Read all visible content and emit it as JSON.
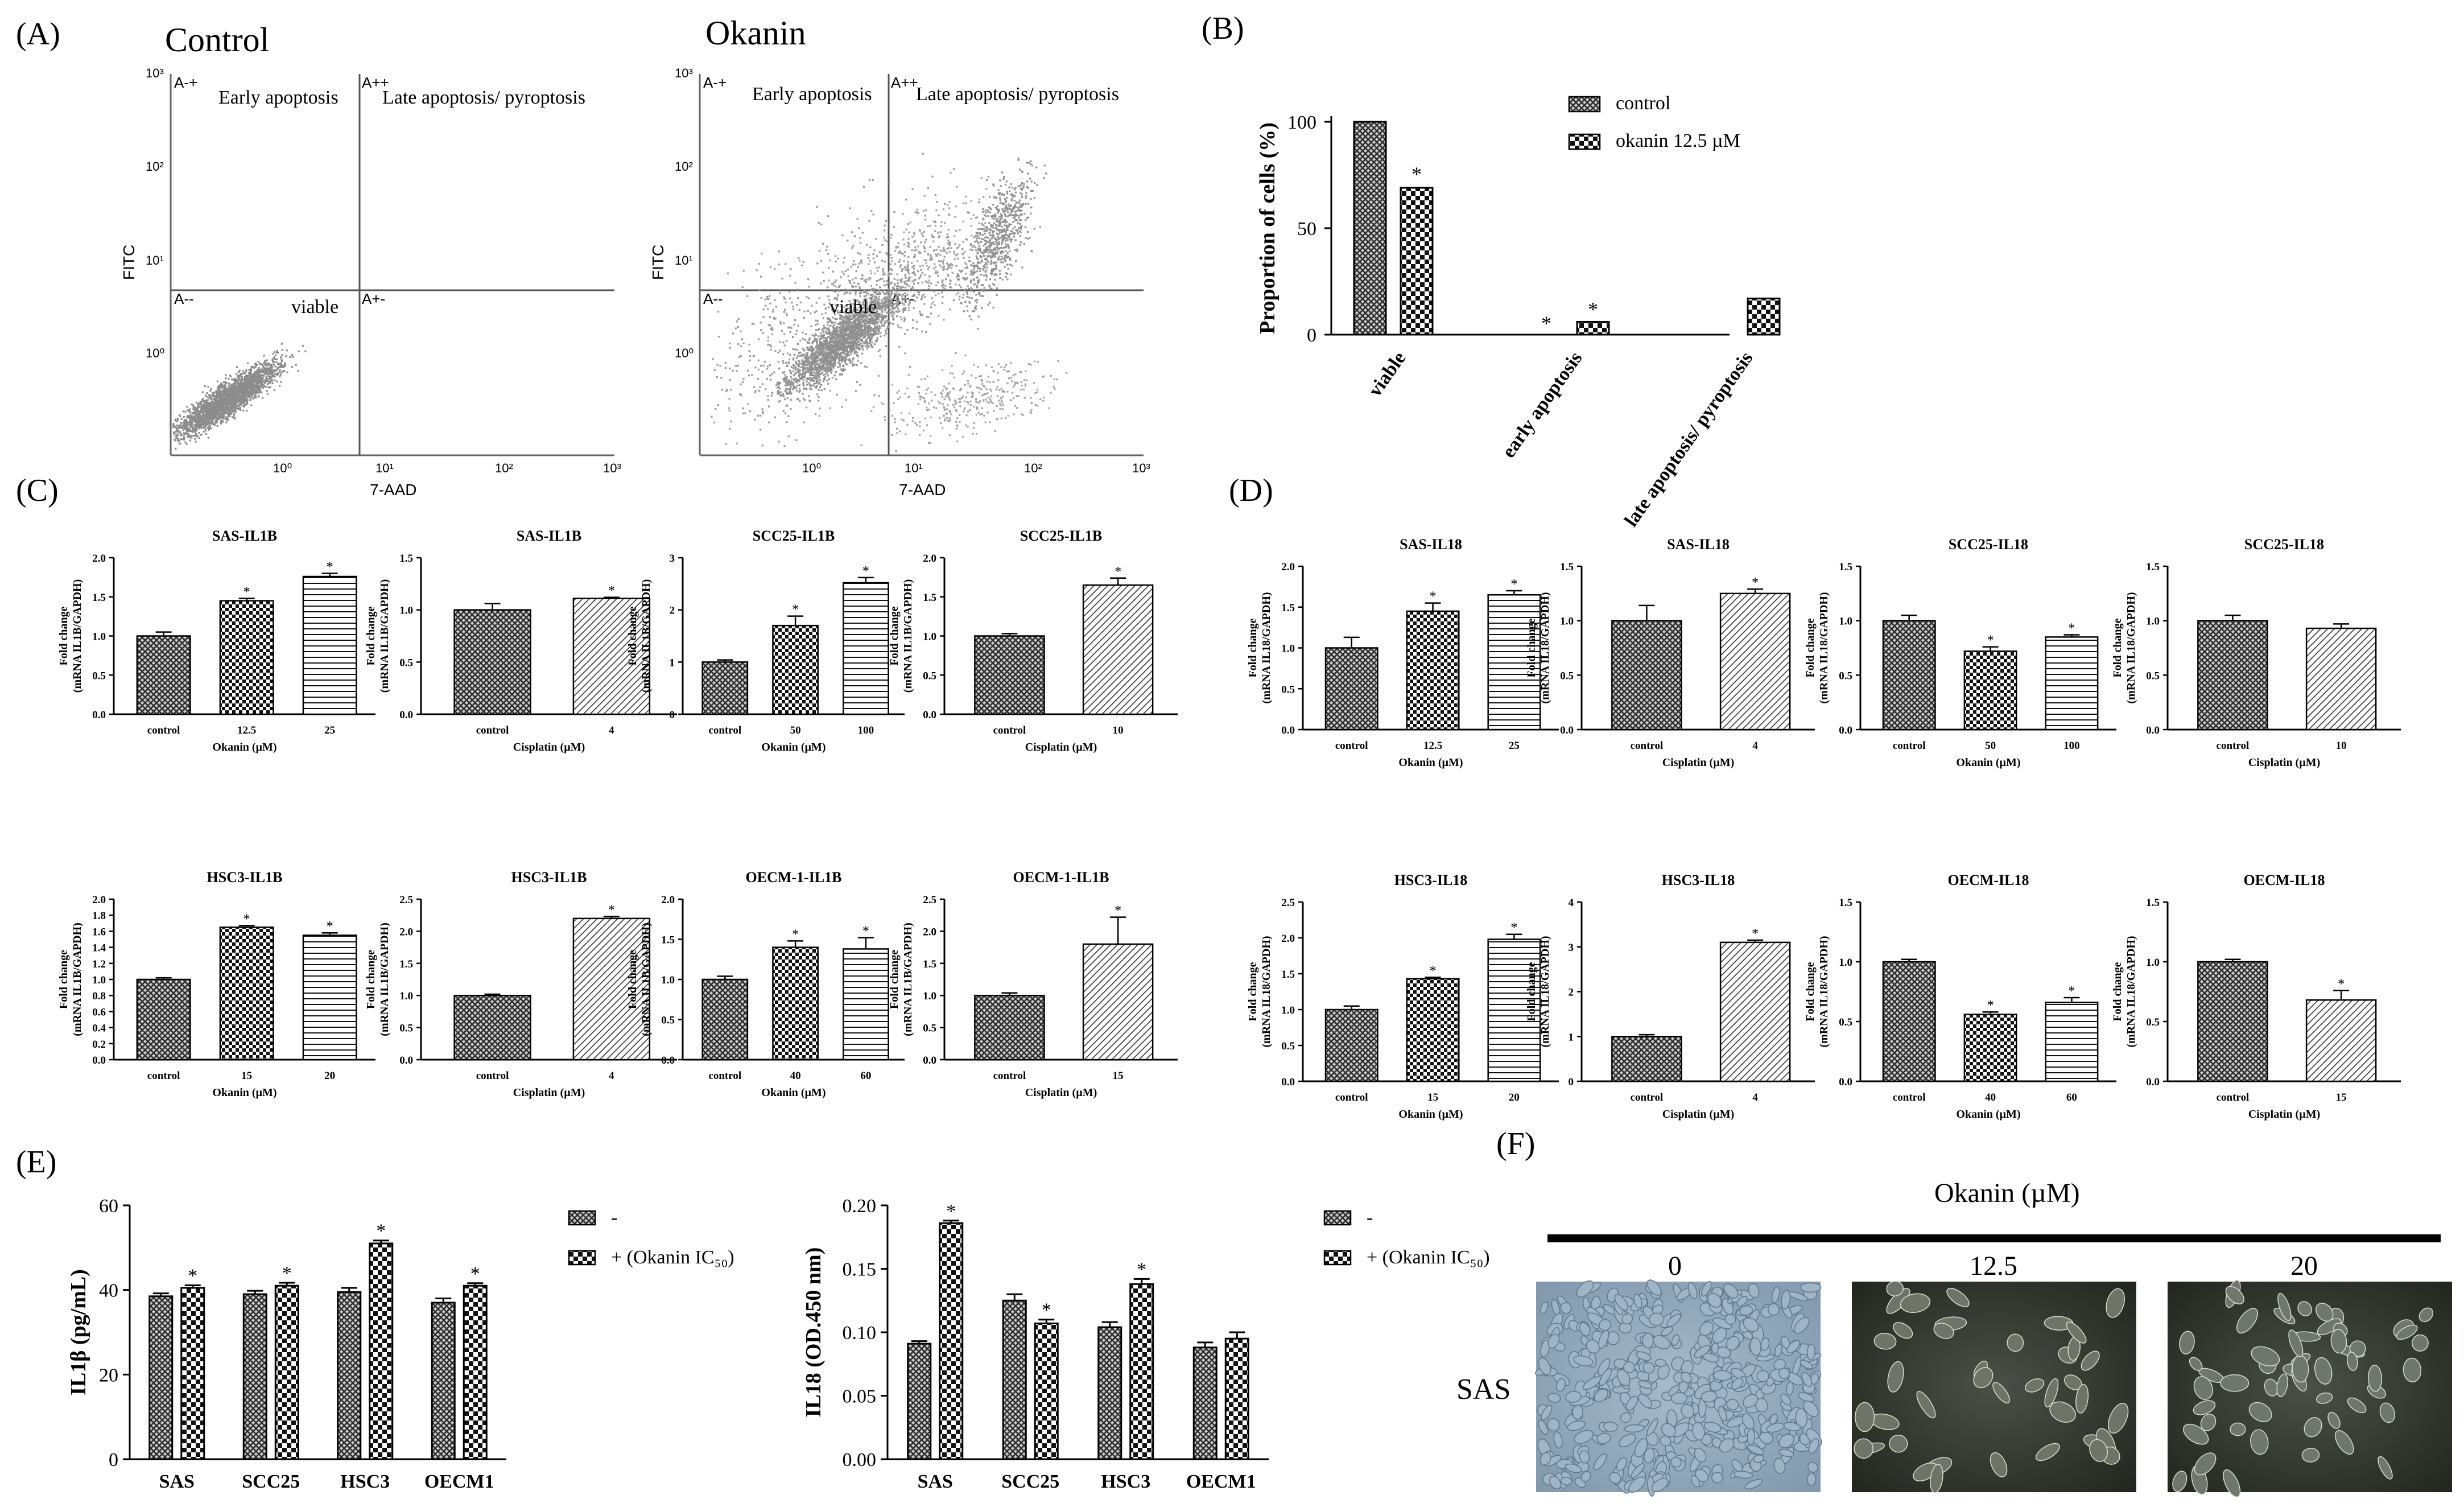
{
  "panels": {
    "A": {
      "label": "(A)",
      "plots": [
        {
          "title": "Control",
          "xlabel": "7-AAD",
          "ylabel": "FITC",
          "ticks": [
            "10⁰",
            "10¹",
            "10²",
            "10³"
          ],
          "quadrants": [
            "A-+",
            "A++",
            "A--",
            "A+-"
          ],
          "regions": {
            "early": "Early apoptosis",
            "late": "Late apoptosis/ pyroptosis",
            "viable": "viable"
          }
        },
        {
          "title": "Okanin",
          "xlabel": "7-AAD",
          "ylabel": "FITC",
          "ticks": [
            "10⁰",
            "10¹",
            "10²",
            "10³"
          ],
          "quadrants": [
            "A-+",
            "A++",
            "A--",
            "A+-"
          ],
          "regions": {
            "early": "Early apoptosis",
            "late": "Late apoptosis/ pyroptosis",
            "viable": "viable"
          }
        }
      ]
    },
    "B": {
      "label": "(B)"
    },
    "C": {
      "label": "(C)"
    },
    "D": {
      "label": "(D)"
    },
    "E": {
      "label": "(E)"
    },
    "F": {
      "label": "(F)",
      "header": "Okanin (µM)",
      "cell_line": "SAS",
      "concentrations": [
        "0",
        "12.5",
        "20"
      ]
    }
  },
  "chart_data": [
    {
      "id": "B",
      "type": "bar",
      "ylabel": "Proportion of cells (%)",
      "ylim": [
        0,
        100
      ],
      "yticks": [
        "0",
        "50",
        "100"
      ],
      "categories": [
        "viable",
        "early apoptosis",
        "late apoptosis/ pyroptosis"
      ],
      "series": [
        {
          "name": "control",
          "values": [
            100,
            0,
            0
          ],
          "err": [
            0,
            0,
            0
          ]
        },
        {
          "name": "okanin 12.5 µM",
          "values": [
            69,
            6,
            17
          ],
          "err": [
            1,
            0.5,
            0.5
          ]
        }
      ],
      "star": "*",
      "sig": [
        false,
        true,
        true,
        true,
        false,
        false
      ]
    },
    {
      "id": "C1",
      "type": "bar",
      "title": "SAS-IL1B",
      "ylabel": [
        "Fold change",
        "(mRNA IL1B/GAPDH)"
      ],
      "xlabel": "Okanin (µM)",
      "ylim": [
        0,
        2
      ],
      "yticks": [
        "0.0",
        "0.5",
        "1.0",
        "1.5",
        "2.0"
      ],
      "categories": [
        "control",
        "12.5",
        "25"
      ],
      "values": [
        1.0,
        1.45,
        1.76
      ],
      "err": [
        0.05,
        0.03,
        0.04
      ],
      "star": "*",
      "sig": [
        false,
        true,
        true
      ]
    },
    {
      "id": "C2",
      "type": "bar",
      "title": "SAS-IL1B",
      "ylabel": [
        "Fold change",
        "(mRNA IL1B/GAPDH)"
      ],
      "xlabel": "Cisplatin (µM)",
      "ylim": [
        0,
        1.5
      ],
      "yticks": [
        "0.0",
        "0.5",
        "1.0",
        "1.5"
      ],
      "categories": [
        "control",
        "4"
      ],
      "values": [
        1.0,
        1.11
      ],
      "err": [
        0.06,
        0.01
      ],
      "star": "*",
      "sig": [
        false,
        true
      ]
    },
    {
      "id": "C3",
      "type": "bar",
      "title": "SCC25-IL1B",
      "ylabel": [
        "Fold change",
        "(mRNA IL1B/GAPDH)"
      ],
      "xlabel": "Okanin (µM)",
      "ylim": [
        0,
        3
      ],
      "yticks": [
        "0",
        "1",
        "2",
        "3"
      ],
      "categories": [
        "control",
        "50",
        "100"
      ],
      "values": [
        1.0,
        1.7,
        2.52
      ],
      "err": [
        0.04,
        0.18,
        0.1
      ],
      "star": "*",
      "sig": [
        false,
        true,
        true
      ]
    },
    {
      "id": "C4",
      "type": "bar",
      "title": "SCC25-IL1B",
      "ylabel": [
        "Fold change",
        "(mRNA IL1B/GAPDH)"
      ],
      "xlabel": "Cisplatin (µM)",
      "ylim": [
        0,
        2
      ],
      "yticks": [
        "0.0",
        "0.5",
        "1.0",
        "1.5",
        "2.0"
      ],
      "categories": [
        "control",
        "10"
      ],
      "values": [
        1.0,
        1.65
      ],
      "err": [
        0.03,
        0.09
      ],
      "star": "*",
      "sig": [
        false,
        true
      ]
    },
    {
      "id": "C5",
      "type": "bar",
      "title": "HSC3-IL1B",
      "ylabel": [
        "Fold change",
        "(mRNA IL1B/GAPDH)"
      ],
      "xlabel": "Okanin (µM)",
      "ylim": [
        0,
        2
      ],
      "yticks": [
        "0.0",
        "0.2",
        "0.4",
        "0.6",
        "0.8",
        "1.0",
        "1.2",
        "1.4",
        "1.6",
        "1.8",
        "2.0"
      ],
      "categories": [
        "control",
        "15",
        "20"
      ],
      "values": [
        1.0,
        1.65,
        1.55
      ],
      "err": [
        0.02,
        0.02,
        0.03
      ],
      "star": "*",
      "sig": [
        false,
        true,
        true
      ]
    },
    {
      "id": "C6",
      "type": "bar",
      "title": "HSC3-IL1B",
      "ylabel": [
        "Fold change",
        "(mRNA IL1B/GAPDH)"
      ],
      "xlabel": "Cisplatin (µM)",
      "ylim": [
        0,
        2.5
      ],
      "yticks": [
        "0.0",
        "0.5",
        "1.0",
        "1.5",
        "2.0",
        "2.5"
      ],
      "categories": [
        "control",
        "4"
      ],
      "values": [
        1.0,
        2.2
      ],
      "err": [
        0.02,
        0.03
      ],
      "star": "*",
      "sig": [
        false,
        true
      ]
    },
    {
      "id": "C7",
      "type": "bar",
      "title": "OECM-1-IL1B",
      "ylabel": [
        "Fold change",
        "(mRNA IL1B/GAPDH)"
      ],
      "xlabel": "Okanin (µM)",
      "ylim": [
        0,
        2
      ],
      "yticks": [
        "0.0",
        "0.5",
        "1.0",
        "1.5",
        "2.0"
      ],
      "categories": [
        "control",
        "40",
        "60"
      ],
      "values": [
        1.0,
        1.4,
        1.38
      ],
      "err": [
        0.04,
        0.08,
        0.14
      ],
      "star": "*",
      "sig": [
        false,
        true,
        true
      ]
    },
    {
      "id": "C8",
      "type": "bar",
      "title": "OECM-1-IL1B",
      "ylabel": [
        "Fold change",
        "(mRNA IL1B/GAPDH)"
      ],
      "xlabel": "Cisplatin (µM)",
      "ylim": [
        0,
        2.5
      ],
      "yticks": [
        "0.0",
        "0.5",
        "1.0",
        "1.5",
        "2.0",
        "2.5"
      ],
      "categories": [
        "control",
        "15"
      ],
      "values": [
        1.0,
        1.8
      ],
      "err": [
        0.04,
        0.42
      ],
      "star": "*",
      "sig": [
        false,
        true
      ]
    },
    {
      "id": "D1",
      "type": "bar",
      "title": "SAS-IL18",
      "ylabel": [
        "Fold change",
        "(mRNA IL18/GAPDH)"
      ],
      "xlabel": "Okanin (µM)",
      "ylim": [
        0,
        2
      ],
      "yticks": [
        "0.0",
        "0.5",
        "1.0",
        "1.5",
        "2.0"
      ],
      "categories": [
        "control",
        "12.5",
        "25"
      ],
      "values": [
        1.0,
        1.45,
        1.65
      ],
      "err": [
        0.13,
        0.1,
        0.05
      ],
      "star": "*",
      "sig": [
        false,
        true,
        true
      ]
    },
    {
      "id": "D2",
      "type": "bar",
      "title": "SAS-IL18",
      "ylabel": [
        "Fold change",
        "(mRNA IL18/GAPDH)"
      ],
      "xlabel": "Cisplatin (µM)",
      "ylim": [
        0,
        1.5
      ],
      "yticks": [
        "0.0",
        "0.5",
        "1.0",
        "1.5"
      ],
      "categories": [
        "control",
        "4"
      ],
      "values": [
        1.0,
        1.25
      ],
      "err": [
        0.14,
        0.04
      ],
      "star": "*",
      "sig": [
        false,
        true
      ]
    },
    {
      "id": "D3",
      "type": "bar",
      "title": "SCC25-IL18",
      "ylabel": [
        "Fold change",
        "(mRNA IL18/GAPDH)"
      ],
      "xlabel": "Okanin (µM)",
      "ylim": [
        0,
        1.5
      ],
      "yticks": [
        "0.0",
        "0.5",
        "1.0",
        "1.5"
      ],
      "categories": [
        "control",
        "50",
        "100"
      ],
      "values": [
        1.0,
        0.72,
        0.85
      ],
      "err": [
        0.05,
        0.04,
        0.02
      ],
      "star": "*",
      "sig": [
        false,
        true,
        true
      ]
    },
    {
      "id": "D4",
      "type": "bar",
      "title": "SCC25-IL18",
      "ylabel": [
        "Fold change",
        "(mRNA IL18/GAPDH)"
      ],
      "xlabel": "Cisplatin (µM)",
      "ylim": [
        0,
        1.5
      ],
      "yticks": [
        "0.0",
        "0.5",
        "1.0",
        "1.5"
      ],
      "categories": [
        "control",
        "10"
      ],
      "values": [
        1.0,
        0.93
      ],
      "err": [
        0.05,
        0.04
      ],
      "star": "*",
      "sig": [
        false,
        false
      ]
    },
    {
      "id": "D5",
      "type": "bar",
      "title": "HSC3-IL18",
      "ylabel": [
        "Fold change",
        "(mRNA IL18/GAPDH)"
      ],
      "xlabel": "Okanin (µM)",
      "ylim": [
        0,
        2.5
      ],
      "yticks": [
        "0.0",
        "0.5",
        "1.0",
        "1.5",
        "2.0",
        "2.5"
      ],
      "categories": [
        "control",
        "15",
        "20"
      ],
      "values": [
        1.0,
        1.43,
        1.98
      ],
      "err": [
        0.05,
        0.02,
        0.07
      ],
      "star": "*",
      "sig": [
        false,
        true,
        true
      ]
    },
    {
      "id": "D6",
      "type": "bar",
      "title": "HSC3-IL18",
      "ylabel": [
        "Fold change",
        "(mRNA IL18/GAPDH)"
      ],
      "xlabel": "Cisplatin (µM)",
      "ylim": [
        0,
        4
      ],
      "yticks": [
        "0",
        "1",
        "2",
        "3",
        "4"
      ],
      "categories": [
        "control",
        "4"
      ],
      "values": [
        1.0,
        3.1
      ],
      "err": [
        0.04,
        0.05
      ],
      "star": "*",
      "sig": [
        false,
        true
      ]
    },
    {
      "id": "D7",
      "type": "bar",
      "title": "OECM-IL18",
      "ylabel": [
        "Fold change",
        "(mRNA IL18/GAPDH)"
      ],
      "xlabel": "Okanin (µM)",
      "ylim": [
        0,
        1.5
      ],
      "yticks": [
        "0.0",
        "0.5",
        "1.0",
        "1.5"
      ],
      "categories": [
        "control",
        "40",
        "60"
      ],
      "values": [
        1.0,
        0.56,
        0.66
      ],
      "err": [
        0.02,
        0.02,
        0.04
      ],
      "star": "*",
      "sig": [
        false,
        true,
        true
      ]
    },
    {
      "id": "D8",
      "type": "bar",
      "title": "OECM-IL18",
      "ylabel": [
        "Fold change",
        "(mRNA IL18/GAPDH)"
      ],
      "xlabel": "Cisplatin (µM)",
      "ylim": [
        0,
        1.5
      ],
      "yticks": [
        "0.0",
        "0.5",
        "1.0",
        "1.5"
      ],
      "categories": [
        "control",
        "15"
      ],
      "values": [
        1.0,
        0.68
      ],
      "err": [
        0.02,
        0.08
      ],
      "star": "*",
      "sig": [
        false,
        true
      ]
    },
    {
      "id": "E1",
      "type": "bar",
      "ylabel": "IL1β (pg/mL)",
      "ylim": [
        0,
        60
      ],
      "yticks": [
        "0",
        "20",
        "40",
        "60"
      ],
      "categories": [
        "SAS",
        "SCC25",
        "HSC3",
        "OECM1"
      ],
      "series": [
        {
          "name": "-",
          "values": [
            38.5,
            39,
            39.5,
            37
          ],
          "err": [
            0.7,
            0.8,
            1.0,
            1.0
          ]
        },
        {
          "name": "+ (Okanin IC₅₀)",
          "values": [
            40.5,
            41,
            51,
            41
          ],
          "err": [
            0.6,
            0.7,
            0.7,
            0.6
          ]
        }
      ],
      "star": "*",
      "sig": [
        false,
        true,
        false,
        true,
        false,
        true,
        false,
        true
      ]
    },
    {
      "id": "E2",
      "type": "bar",
      "ylabel": "IL18 (OD.450 nm)",
      "ylim": [
        0,
        0.2
      ],
      "yticks": [
        "0.00",
        "0.05",
        "0.10",
        "0.15",
        "0.20"
      ],
      "categories": [
        "SAS",
        "SCC25",
        "HSC3",
        "OECM1"
      ],
      "series": [
        {
          "name": "-",
          "values": [
            0.091,
            0.125,
            0.104,
            0.088
          ],
          "err": [
            0.002,
            0.005,
            0.004,
            0.004
          ]
        },
        {
          "name": "+ (Okanin IC₅₀)",
          "values": [
            0.186,
            0.107,
            0.138,
            0.095
          ],
          "err": [
            0.002,
            0.003,
            0.004,
            0.005
          ]
        }
      ],
      "star": "*",
      "sig": [
        false,
        true,
        false,
        true,
        false,
        true,
        false,
        false
      ]
    }
  ]
}
